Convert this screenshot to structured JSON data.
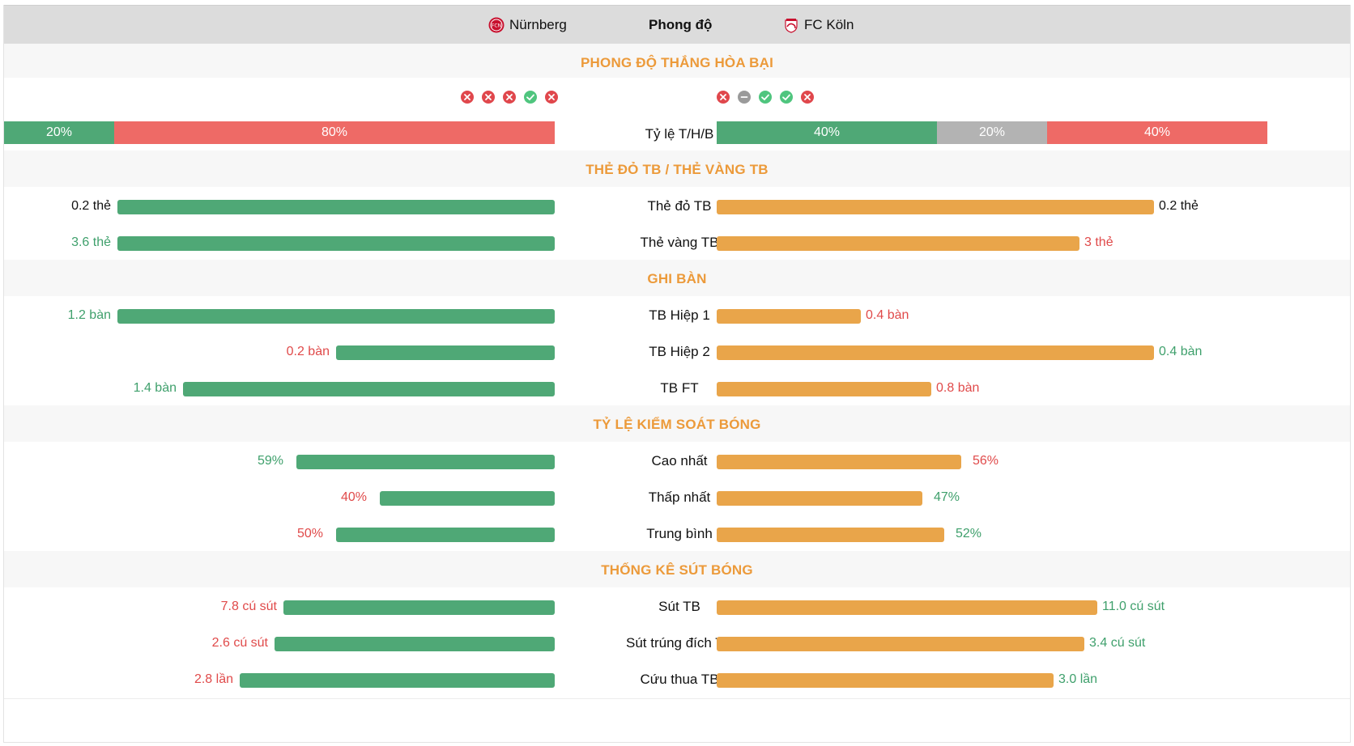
{
  "header": {
    "home_team": "Nürnberg",
    "title": "Phong độ",
    "away_team": "FC Köln",
    "home_logo_icon": "nurnberg-crest-icon",
    "away_logo_icon": "koln-crest-icon"
  },
  "colors": {
    "home_bar": "#4fa876",
    "away_bar": "#e9a54a",
    "win": "#4fa876",
    "draw": "#b3b3b3",
    "loss": "#ee6a66",
    "section_title": "#ec9a3a"
  },
  "sections": {
    "form": "PHONG ĐỘ THẮNG HÒA BẠI",
    "cards": "THẺ ĐỎ TB / THẺ VÀNG TB",
    "goals": "GHI BÀN",
    "possession": "TỶ LỆ KIỂM SOÁT BÓNG",
    "shots": "THỐNG KÊ SÚT BÓNG"
  },
  "form": {
    "home": [
      "L",
      "L",
      "L",
      "W",
      "L"
    ],
    "away": [
      "L",
      "D",
      "W",
      "W",
      "L"
    ]
  },
  "ratio": {
    "label": "Tỷ lệ T/H/B",
    "home": {
      "win": "20%",
      "draw": "",
      "loss": "80%",
      "win_pct": 20,
      "draw_pct": 0,
      "loss_pct": 80
    },
    "away": {
      "win": "40%",
      "draw": "20%",
      "loss": "40%",
      "win_pct": 40,
      "draw_pct": 20,
      "loss_pct": 40
    }
  },
  "stats": {
    "red_cards": {
      "label": "Thẻ đỏ TB",
      "home": "0.2 thẻ",
      "away": "0.2 thẻ",
      "home_fill": 1.0,
      "away_fill": 1.0
    },
    "yellow_cards": {
      "label": "Thẻ vàng TB",
      "home": "3.6 thẻ",
      "away": "3 thẻ",
      "home_fill": 1.0,
      "away_fill": 0.83
    },
    "goals_h1": {
      "label": "TB Hiệp 1",
      "home": "1.2 bàn",
      "away": "0.4 bàn",
      "home_fill": 1.0,
      "away_fill": 0.33
    },
    "goals_h2": {
      "label": "TB Hiệp 2",
      "home": "0.2 bàn",
      "away": "0.4 bàn",
      "home_fill": 0.5,
      "away_fill": 1.0
    },
    "goals_ft": {
      "label": "TB FT",
      "home": "1.4 bàn",
      "away": "0.8 bàn",
      "home_fill": 0.85,
      "away_fill": 0.49
    },
    "poss_max": {
      "label": "Cao nhất",
      "home": "59%",
      "away": "56%",
      "home_fill": 0.59,
      "away_fill": 0.56
    },
    "poss_min": {
      "label": "Thấp nhất",
      "home": "40%",
      "away": "47%",
      "home_fill": 0.4,
      "away_fill": 0.47
    },
    "poss_avg": {
      "label": "Trung bình",
      "home": "50%",
      "away": "52%",
      "home_fill": 0.5,
      "away_fill": 0.52
    },
    "shots": {
      "label": "Sút TB",
      "home": "7.8 cú sút",
      "away": "11.0 cú sút",
      "home_fill": 0.62,
      "away_fill": 0.87
    },
    "shots_on": {
      "label": "Sút trúng đích TB",
      "home": "2.6 cú sút",
      "away": "3.4 cú sút",
      "home_fill": 0.64,
      "away_fill": 0.84
    },
    "saves": {
      "label": "Cứu thua TB",
      "home": "2.8 lần",
      "away": "3.0 lần",
      "home_fill": 0.72,
      "away_fill": 0.77
    }
  }
}
